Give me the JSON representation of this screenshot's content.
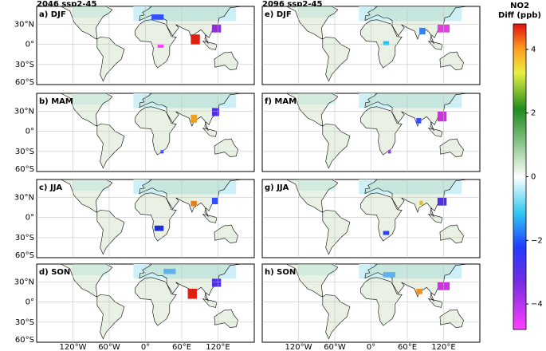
{
  "columns": [
    "2046 ssp2-45",
    "2096 ssp2-45"
  ],
  "panels": [
    "a) DJF",
    "b) MAM",
    "c) JJA",
    "d) SON",
    "e) DJF",
    "f) MAM",
    "g) JJA",
    "h) SON"
  ],
  "lat_ticks": [
    {
      "value": 30,
      "label": "30°N"
    },
    {
      "value": 0,
      "label": "0°"
    },
    {
      "value": -30,
      "label": "30°S"
    },
    {
      "value": -60,
      "label": "60°S"
    }
  ],
  "lon_ticks": [
    {
      "value": -120,
      "label": "120°W"
    },
    {
      "value": -60,
      "label": "60°W"
    },
    {
      "value": 0,
      "label": "0°"
    },
    {
      "value": 60,
      "label": "60°E"
    },
    {
      "value": 120,
      "label": "120°E"
    }
  ],
  "colorbar": {
    "title": "NO2",
    "unit_label": "Diff (ppb)",
    "clim": [
      -4.8,
      4.8
    ],
    "ticks": [
      4,
      2,
      0,
      {
        "value": -2,
        "label": "−2"
      },
      {
        "value": -4,
        "label": "−4"
      }
    ]
  }
}
